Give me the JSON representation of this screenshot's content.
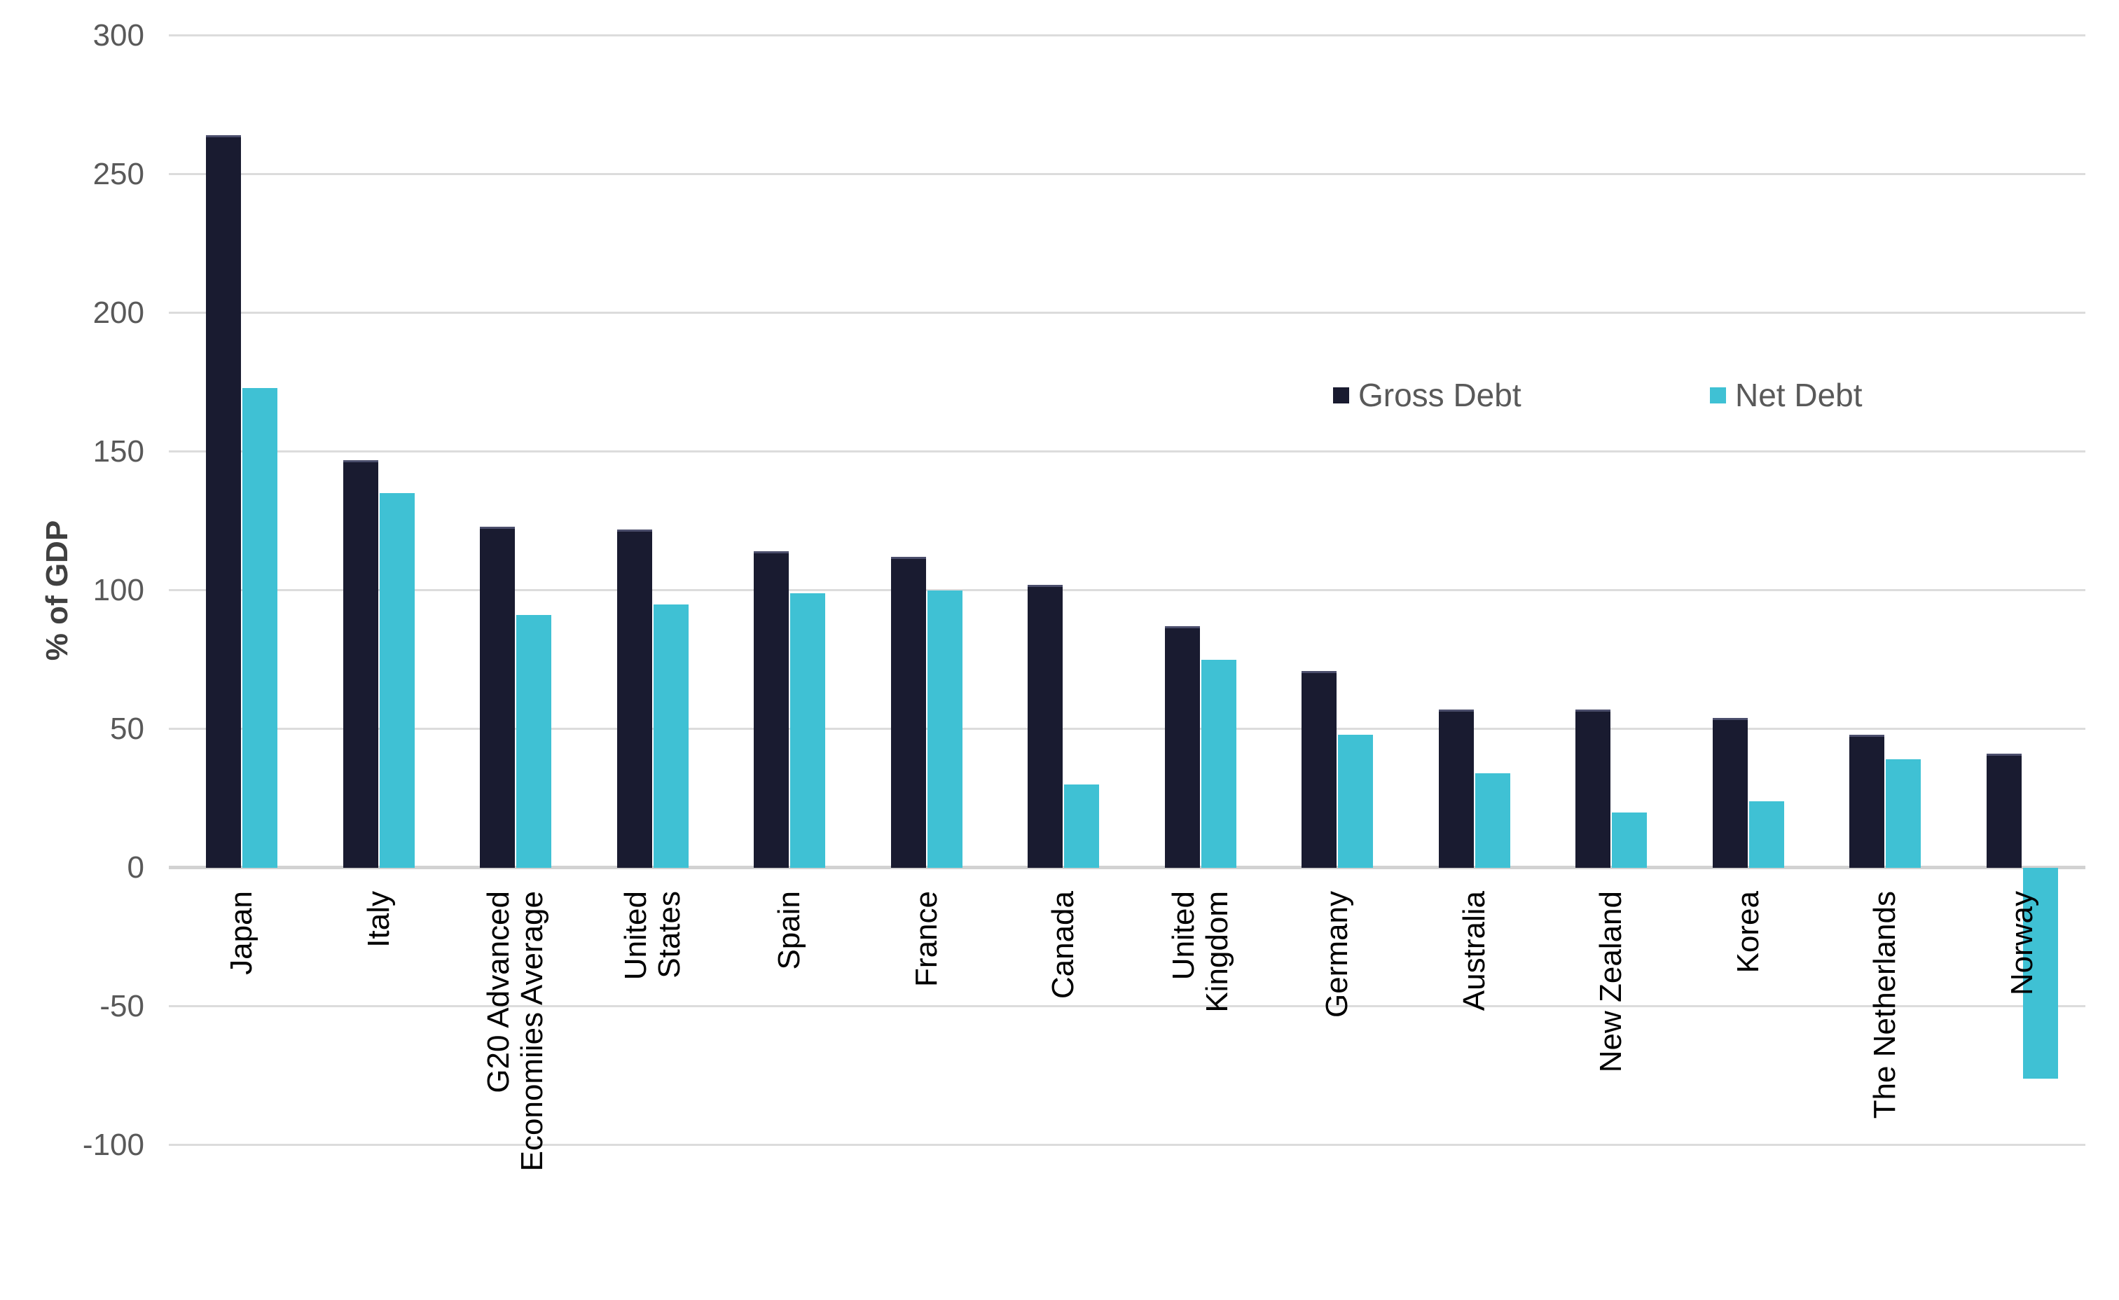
{
  "chart_data": {
    "type": "bar",
    "title": "",
    "ylabel": "% of GDP",
    "categories": [
      "Japan",
      "Italy",
      "G20 Advanced\nEconomiies Average",
      "United\nStates",
      "Spain",
      "France",
      "Canada",
      "United\nKingdom",
      "Germany",
      "Australia",
      "New Zealand",
      "Korea",
      "The Netherlands",
      "Norway"
    ],
    "series": [
      {
        "name": "Gross Debt",
        "color": "#191B30",
        "values": [
          264,
          147,
          123,
          122,
          114,
          112,
          102,
          87,
          71,
          57,
          57,
          54,
          48,
          41
        ]
      },
      {
        "name": "Net Debt",
        "color": "#3FC1D4",
        "values": [
          173,
          135,
          91,
          95,
          99,
          100,
          30,
          75,
          48,
          34,
          20,
          24,
          39,
          -76
        ]
      }
    ],
    "ylim": [
      -100,
      300
    ],
    "ytick_step": 50,
    "grid": true,
    "legend_position": "top-right",
    "colors": {
      "grid": "#DCDCDC",
      "zero_line": "#D2D2D2",
      "tick_text": "#595959",
      "category_text": "#000000",
      "axis_title_text": "#404040",
      "background": "#FFFFFF"
    }
  }
}
